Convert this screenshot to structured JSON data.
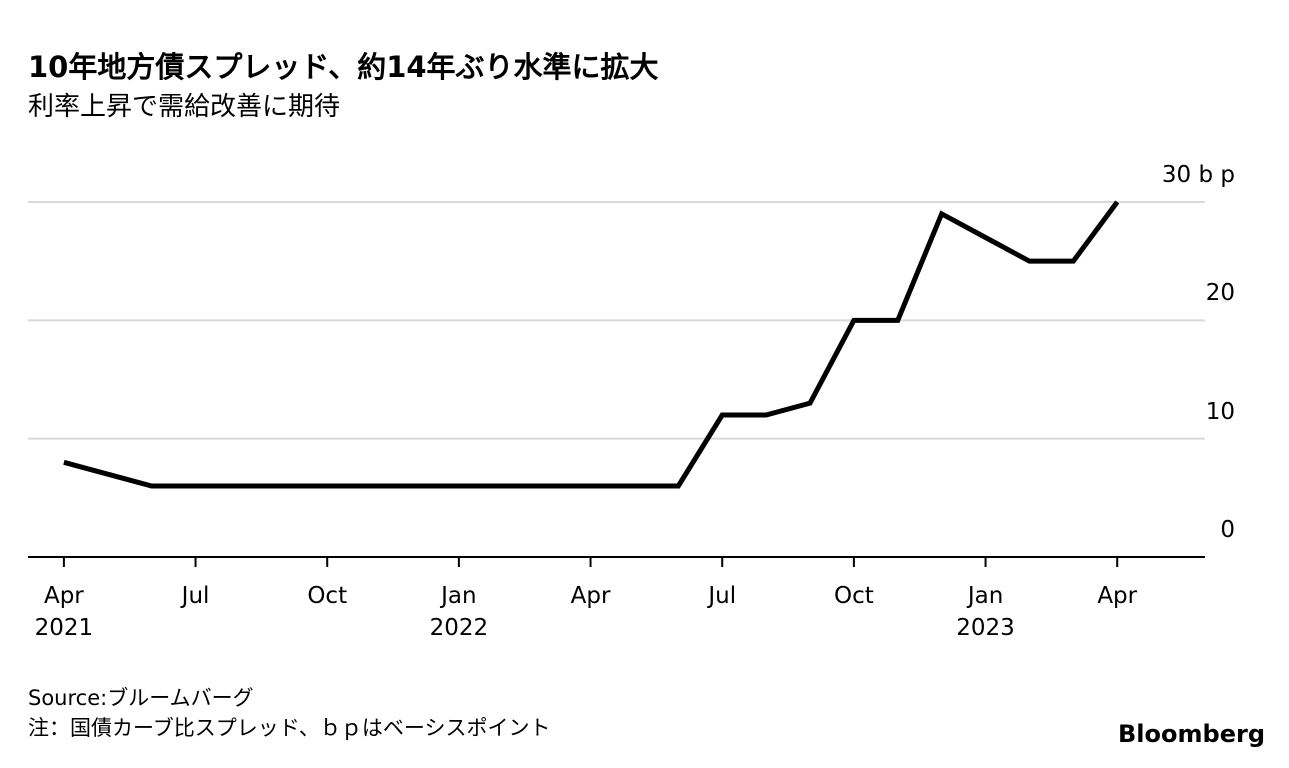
{
  "chart_data": {
    "type": "line",
    "title": "10年地方債スプレッド、約14年ぶり水準に拡大",
    "subtitle": "利率上昇で需給改善に期待",
    "x": [
      "2021-04",
      "2021-05",
      "2021-06",
      "2021-07",
      "2021-08",
      "2021-09",
      "2021-10",
      "2021-11",
      "2021-12",
      "2022-01",
      "2022-02",
      "2022-03",
      "2022-04",
      "2022-05",
      "2022-06",
      "2022-07",
      "2022-08",
      "2022-09",
      "2022-10",
      "2022-11",
      "2022-12",
      "2023-01",
      "2023-02",
      "2023-03",
      "2023-04"
    ],
    "series": [
      {
        "name": "10年地方債スプレッド",
        "color": "#000000",
        "values": [
          8,
          7,
          6,
          6,
          6,
          6,
          6,
          6,
          6,
          6,
          6,
          6,
          6,
          6,
          6,
          12,
          12,
          13,
          20,
          20,
          29,
          27,
          25,
          25,
          30
        ]
      }
    ],
    "xlim": [
      "2021-03",
      "2023-06"
    ],
    "xticks": [
      {
        "value": "2021-04",
        "label": "Apr\n2021"
      },
      {
        "value": "2021-07",
        "label": "Jul"
      },
      {
        "value": "2021-10",
        "label": "Oct"
      },
      {
        "value": "2022-01",
        "label": "Jan\n2022"
      },
      {
        "value": "2022-04",
        "label": "Apr"
      },
      {
        "value": "2022-07",
        "label": "Jul"
      },
      {
        "value": "2022-10",
        "label": "Oct"
      },
      {
        "value": "2023-01",
        "label": "Jan\n2023"
      },
      {
        "value": "2023-04",
        "label": "Apr"
      }
    ],
    "ylim": [
      0,
      30
    ],
    "yticks": [
      0,
      10,
      20,
      {
        "value": 30,
        "label": "30 b p"
      }
    ],
    "grid": true,
    "source": "Source:ブルームバーグ",
    "note": "注：国債カーブ比スプレッド、ｂｐはベーシスポイント",
    "brand": "Bloomberg"
  }
}
